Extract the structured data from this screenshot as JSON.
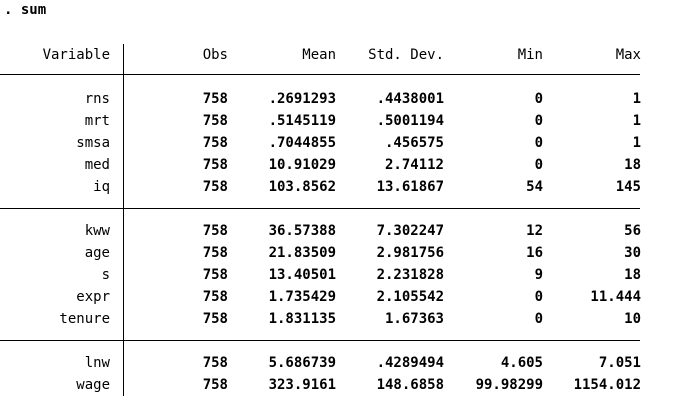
{
  "command": ". sum",
  "headers": {
    "variable": "Variable",
    "obs": "Obs",
    "mean": "Mean",
    "sd": "Std. Dev.",
    "min": "Min",
    "max": "Max"
  },
  "rows": [
    {
      "variable": "rns",
      "obs": "758",
      "mean": ".2691293",
      "sd": ".4438001",
      "min": "0",
      "max": "1"
    },
    {
      "variable": "mrt",
      "obs": "758",
      "mean": ".5145119",
      "sd": ".5001194",
      "min": "0",
      "max": "1"
    },
    {
      "variable": "smsa",
      "obs": "758",
      "mean": ".7044855",
      "sd": ".456575",
      "min": "0",
      "max": "1"
    },
    {
      "variable": "med",
      "obs": "758",
      "mean": "10.91029",
      "sd": "2.74112",
      "min": "0",
      "max": "18"
    },
    {
      "variable": "iq",
      "obs": "758",
      "mean": "103.8562",
      "sd": "13.61867",
      "min": "54",
      "max": "145"
    },
    {
      "variable": "kww",
      "obs": "758",
      "mean": "36.57388",
      "sd": "7.302247",
      "min": "12",
      "max": "56"
    },
    {
      "variable": "age",
      "obs": "758",
      "mean": "21.83509",
      "sd": "2.981756",
      "min": "16",
      "max": "30"
    },
    {
      "variable": "s",
      "obs": "758",
      "mean": "13.40501",
      "sd": "2.231828",
      "min": "9",
      "max": "18"
    },
    {
      "variable": "expr",
      "obs": "758",
      "mean": "1.735429",
      "sd": "2.105542",
      "min": "0",
      "max": "11.444"
    },
    {
      "variable": "tenure",
      "obs": "758",
      "mean": "1.831135",
      "sd": "1.67363",
      "min": "0",
      "max": "10"
    },
    {
      "variable": "lnw",
      "obs": "758",
      "mean": "5.686739",
      "sd": ".4289494",
      "min": "4.605",
      "max": "7.051"
    },
    {
      "variable": "wage",
      "obs": "758",
      "mean": "323.9161",
      "sd": "148.6858",
      "min": "99.98299",
      "max": "1154.012"
    }
  ]
}
